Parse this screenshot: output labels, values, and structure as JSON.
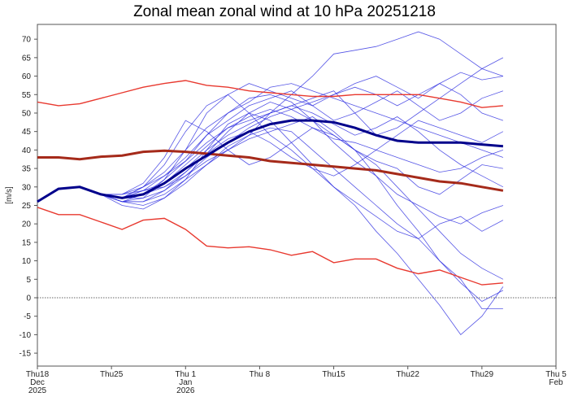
{
  "chart_data": {
    "type": "line",
    "title": "Zonal mean zonal wind at 10 hPa 20251218",
    "ylabel": "[m/s]",
    "xlabel": "",
    "ylim": [
      -18.5,
      74
    ],
    "yticks": [
      -15,
      -10,
      -5,
      0,
      5,
      10,
      15,
      20,
      25,
      30,
      35,
      40,
      45,
      50,
      55,
      60,
      65,
      70
    ],
    "x_days_range": [
      0,
      49
    ],
    "x_days_step": 2,
    "x_start_date": "2025-12-18",
    "xticks": [
      {
        "day": 0,
        "lines": [
          "Thu18",
          "Dec",
          "2025"
        ]
      },
      {
        "day": 7,
        "lines": [
          "Thu25"
        ]
      },
      {
        "day": 14,
        "lines": [
          "Thu 1",
          "Jan",
          "2026"
        ]
      },
      {
        "day": 21,
        "lines": [
          "Thu 8"
        ]
      },
      {
        "day": 28,
        "lines": [
          "Thu15"
        ]
      },
      {
        "day": 35,
        "lines": [
          "Thu22"
        ]
      },
      {
        "day": 42,
        "lines": [
          "Thu29"
        ]
      },
      {
        "day": 49,
        "lines": [
          "Thu 5",
          "Feb"
        ]
      }
    ],
    "zero_line": true,
    "colors": {
      "members": "#2a2ae0",
      "ensemble_mean": "#00008b",
      "climatology": "#e8392f",
      "climatology_mean": "#a52a1a"
    },
    "climatology_max": [
      53,
      52,
      52.5,
      54,
      55.5,
      57,
      58,
      58.8,
      57.5,
      57,
      56,
      55.5,
      55,
      54.5,
      54.5,
      55,
      55,
      55,
      55,
      54,
      53,
      51.5,
      52
    ],
    "climatology_mean": [
      38,
      38,
      37.5,
      38.2,
      38.5,
      39.5,
      39.8,
      39.5,
      39,
      38.5,
      38,
      37,
      36.5,
      36,
      35.5,
      35,
      34.5,
      33.5,
      32.5,
      31.5,
      31,
      30,
      29
    ],
    "climatology_min": [
      24.5,
      22.5,
      22.5,
      20.5,
      18.5,
      21,
      21.5,
      18.5,
      14,
      13.5,
      13.8,
      13,
      11.5,
      12.5,
      9.5,
      10.5,
      10.5,
      8,
      6.5,
      7.5,
      5.5,
      3.5,
      4
    ],
    "ensemble_mean": [
      26,
      29.5,
      30,
      28,
      27,
      28,
      31,
      35,
      38.5,
      42,
      45,
      47,
      48,
      48,
      47.5,
      46,
      44,
      42.5,
      42,
      42,
      42,
      41.5,
      41
    ],
    "members": [
      [
        26,
        29.5,
        30,
        28,
        26,
        27,
        32,
        40,
        50,
        55,
        58,
        56,
        54,
        52,
        55,
        58,
        60,
        57,
        54,
        58,
        61,
        59,
        60
      ],
      [
        26,
        29.5,
        30,
        28,
        27,
        30,
        36,
        45,
        52,
        55,
        50,
        44,
        40,
        35,
        30,
        25,
        18,
        12,
        5,
        -2,
        -10,
        -5,
        3
      ],
      [
        26,
        29.5,
        30,
        28,
        28,
        29,
        30,
        33,
        37,
        40,
        44,
        50,
        55,
        60,
        66,
        67,
        68,
        70,
        72,
        70,
        66,
        62,
        60
      ],
      [
        26,
        29.5,
        30,
        28,
        25,
        24,
        27,
        32,
        40,
        47,
        50,
        48,
        42,
        36,
        30,
        26,
        22,
        18,
        16,
        20,
        22,
        18,
        21
      ],
      [
        26,
        29.5,
        30,
        28,
        27,
        28,
        30,
        34,
        39,
        45,
        50,
        53,
        51,
        48,
        44,
        40,
        36,
        30,
        24,
        18,
        12,
        8,
        5
      ],
      [
        26,
        29.5,
        30,
        28,
        27,
        30,
        33,
        37,
        42,
        46,
        48,
        50,
        52,
        54,
        56,
        50,
        44,
        46,
        50,
        54,
        58,
        62,
        65
      ],
      [
        26,
        29.5,
        30,
        28,
        26,
        25,
        27,
        31,
        36,
        41,
        44,
        46,
        45,
        40,
        35,
        30,
        25,
        20,
        16,
        10,
        5,
        -3,
        -3
      ],
      [
        26,
        29.5,
        30,
        28,
        27,
        29,
        33,
        38,
        44,
        48,
        52,
        54,
        56,
        52,
        48,
        50,
        53,
        56,
        52,
        48,
        50,
        54,
        56
      ],
      [
        26,
        29.5,
        30,
        28,
        28,
        31,
        38,
        48,
        45,
        40,
        36,
        38,
        42,
        46,
        44,
        40,
        37,
        35,
        30,
        28,
        32,
        36,
        35
      ],
      [
        26,
        29.5,
        30,
        28,
        26,
        26,
        28,
        32,
        36,
        40,
        43,
        45,
        47,
        49,
        45,
        40,
        33,
        25,
        18,
        10,
        4,
        -1,
        2
      ],
      [
        26,
        29.5,
        30,
        28,
        27,
        29,
        31,
        35,
        40,
        44,
        47,
        50,
        52,
        50,
        47,
        44,
        46,
        49,
        45,
        40,
        36,
        33,
        30
      ],
      [
        26,
        29.5,
        30,
        28,
        27,
        27,
        29,
        33,
        38,
        42,
        46,
        49,
        51,
        53,
        55,
        57,
        55,
        52,
        55,
        58,
        55,
        50,
        48
      ],
      [
        26,
        29.5,
        30,
        28,
        26,
        28,
        32,
        37,
        44,
        50,
        54,
        55,
        53,
        48,
        42,
        37,
        33,
        28,
        25,
        22,
        20,
        23,
        25
      ],
      [
        26,
        29.5,
        30,
        28,
        27,
        28,
        31,
        36,
        41,
        46,
        49,
        51,
        49,
        46,
        43,
        42,
        40,
        38,
        36,
        34,
        35,
        38,
        40
      ],
      [
        26,
        29.5,
        30,
        28,
        28,
        30,
        34,
        40,
        46,
        50,
        53,
        57,
        58,
        56,
        54,
        52,
        50,
        48,
        46,
        44,
        42,
        40,
        38
      ],
      [
        26,
        29.5,
        30,
        28,
        26,
        26,
        29,
        34,
        39,
        43,
        45,
        42,
        38,
        35,
        33,
        36,
        40,
        44,
        48,
        46,
        44,
        42,
        45
      ]
    ]
  }
}
